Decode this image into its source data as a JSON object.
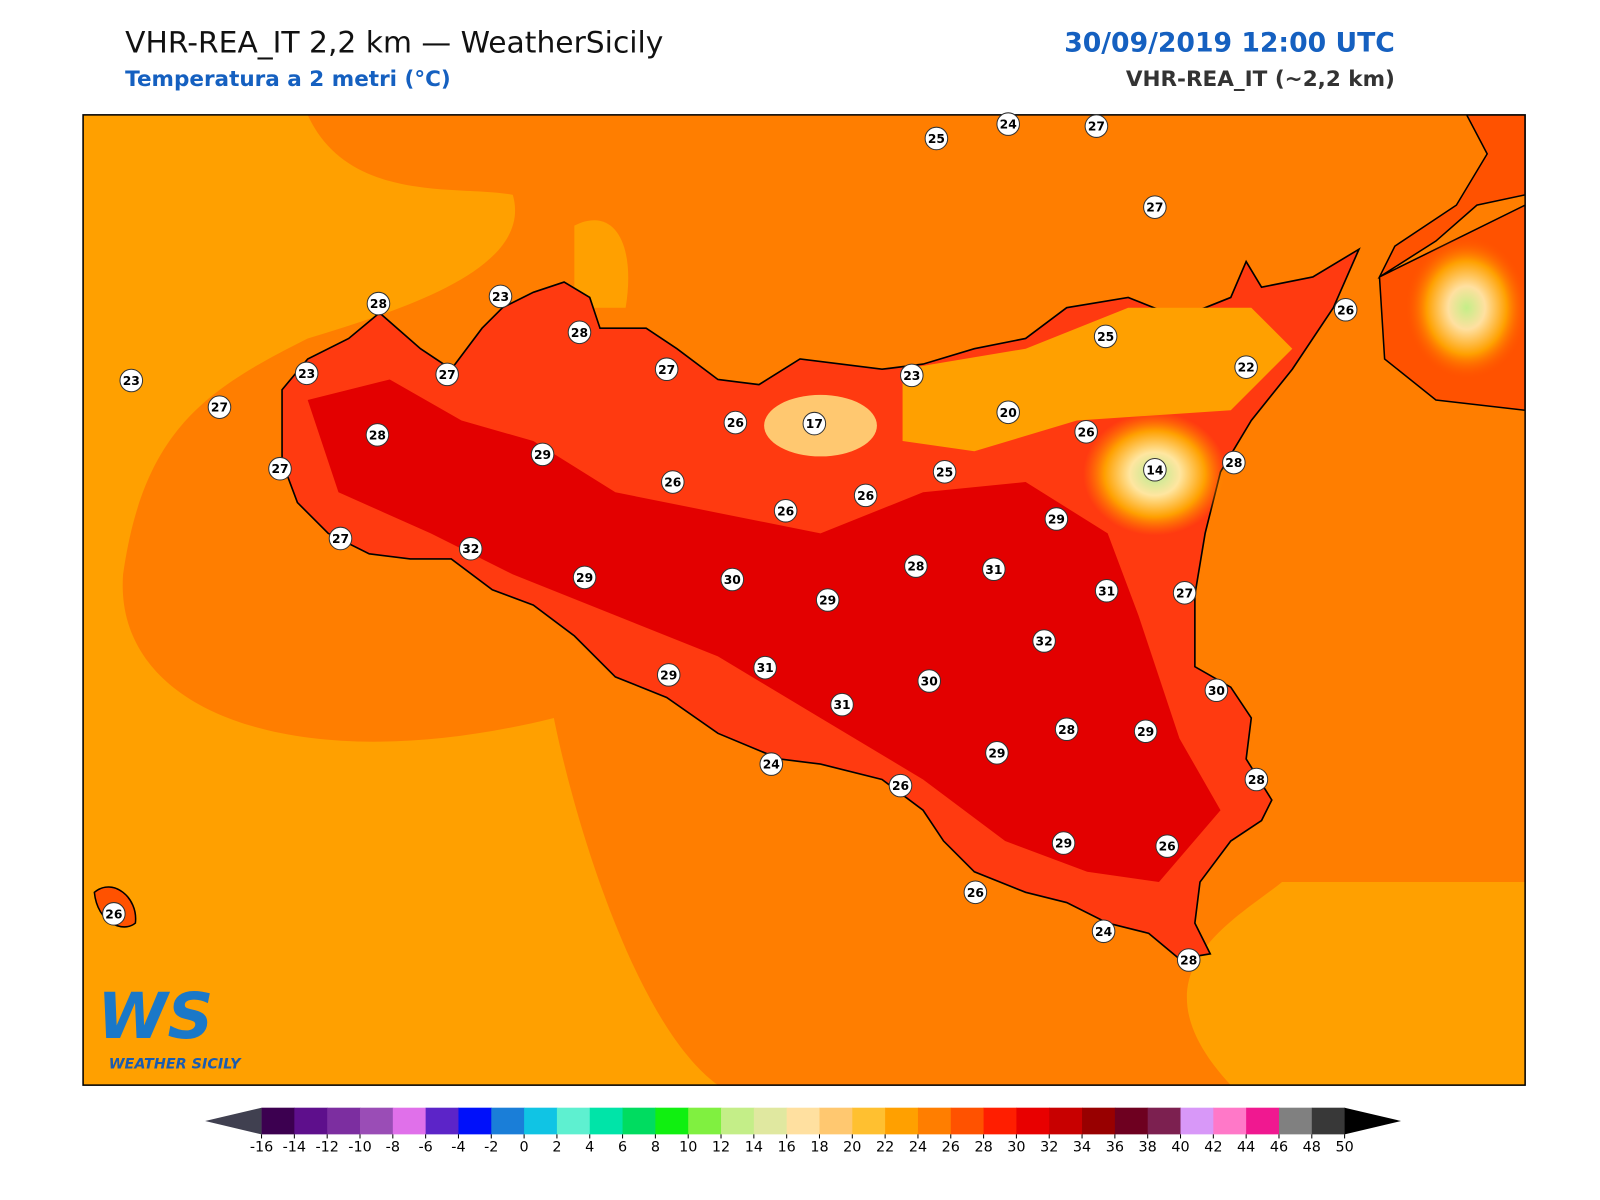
{
  "header": {
    "title": "VHR-REA_IT 2,2 km — WeatherSicily",
    "subtitle": "Temperatura a 2 metri (°C)",
    "date": "30/09/2019 12:00 UTC",
    "model": "VHR-REA_IT (~2,2 km)"
  },
  "map": {
    "stations": [
      25,
      24,
      27,
      27,
      28,
      23,
      28,
      27,
      23,
      25,
      26,
      22,
      23,
      23,
      27,
      27,
      28,
      29,
      26,
      17,
      20,
      26,
      28,
      14,
      27,
      26,
      26,
      26,
      25,
      29,
      27,
      32,
      29,
      30,
      29,
      28,
      31,
      31,
      27,
      32,
      29,
      31,
      31,
      30,
      30,
      28,
      29,
      29,
      24,
      26,
      28,
      29,
      26,
      26,
      24,
      28,
      26
    ]
  },
  "logo": {
    "mark": "WS",
    "name": "WEATHER SICILY"
  },
  "colorbar": {
    "ticks": [
      -16,
      -14,
      -12,
      -10,
      -8,
      -6,
      -4,
      -2,
      0,
      2,
      4,
      6,
      8,
      10,
      12,
      14,
      16,
      18,
      20,
      22,
      24,
      26,
      28,
      30,
      32,
      34,
      36,
      38,
      40,
      42,
      44,
      46,
      48,
      50
    ],
    "colors": [
      "#3c0050",
      "#5e0f8c",
      "#7c2ea0",
      "#9a4db6",
      "#e070ea",
      "#5c24c8",
      "#0010fa",
      "#1a7ed8",
      "#10c4e4",
      "#5ef0d0",
      "#00e4a8",
      "#00dc60",
      "#10f010",
      "#80f040",
      "#c4ee88",
      "#e0e8a0",
      "#ffe0a0",
      "#ffc870",
      "#ffc030",
      "#ffa000",
      "#ff7e00",
      "#ff5200",
      "#ff1e00",
      "#e80000",
      "#c80000",
      "#980000",
      "#6e0020",
      "#7c2050",
      "#d898f8",
      "#ff78c8",
      "#f01890",
      "#808080",
      "#383838"
    ],
    "under_color": "#404050",
    "over_color": "#000000"
  }
}
